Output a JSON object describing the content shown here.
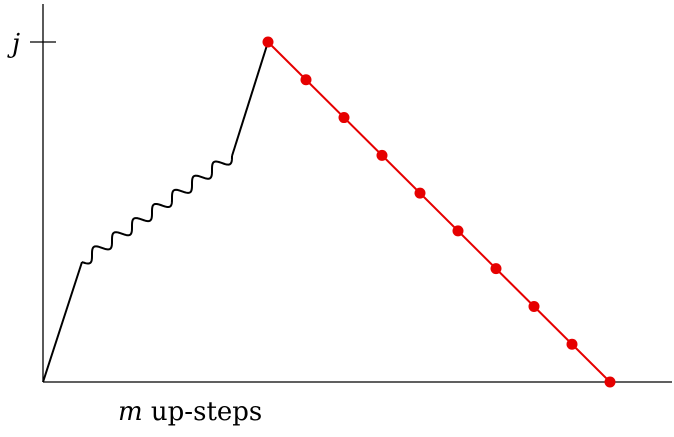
{
  "diagram": {
    "y_tick_label": "j",
    "x_caption_var": "m",
    "x_caption_text": " up-steps",
    "colors": {
      "axis": "#000000",
      "path": "#000000",
      "descent": "#e60000",
      "dots": "#e60000"
    },
    "descent_points": 10
  }
}
